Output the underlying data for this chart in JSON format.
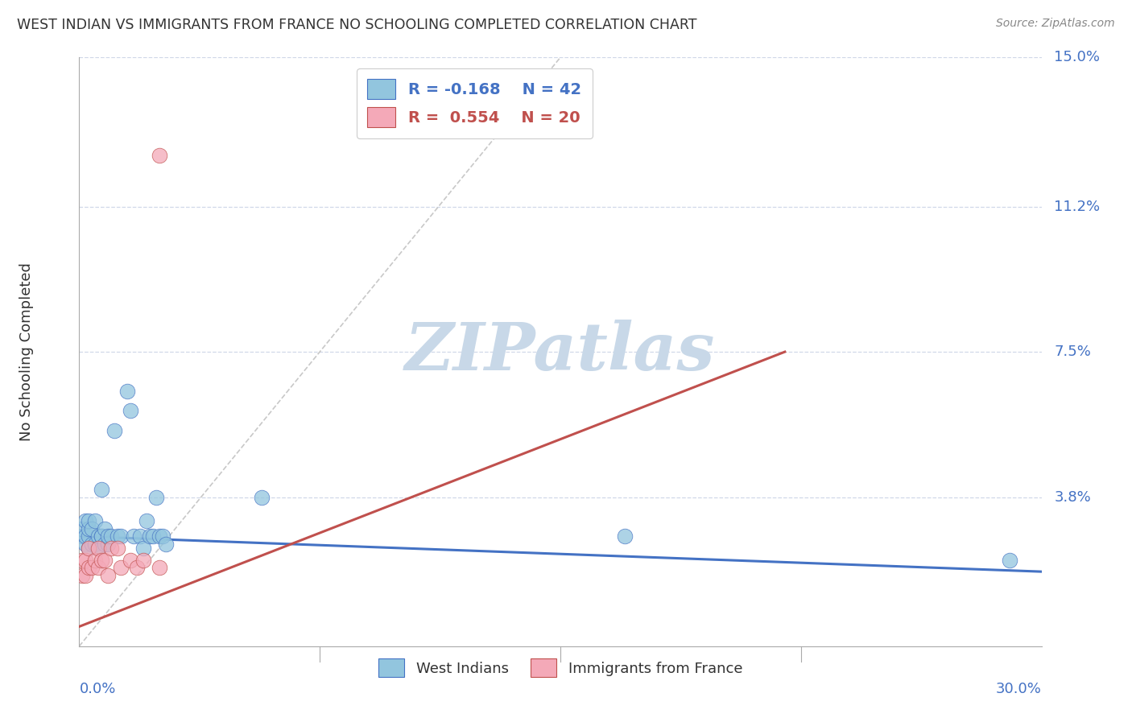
{
  "title": "WEST INDIAN VS IMMIGRANTS FROM FRANCE NO SCHOOLING COMPLETED CORRELATION CHART",
  "source": "Source: ZipAtlas.com",
  "ylabel": "No Schooling Completed",
  "xlim": [
    0.0,
    0.3
  ],
  "ylim": [
    0.0,
    0.15
  ],
  "xtick_labels": [
    "0.0%",
    "30.0%"
  ],
  "ytick_labels": [
    "15.0%",
    "11.2%",
    "7.5%",
    "3.8%"
  ],
  "ytick_vals": [
    0.15,
    0.112,
    0.075,
    0.038
  ],
  "color_blue": "#92c5de",
  "color_pink": "#f4a9b8",
  "color_line_blue": "#4472c4",
  "color_line_pink": "#c0504d",
  "color_diag": "#c8c8c8",
  "color_axis_label": "#4472c4",
  "background_color": "#ffffff",
  "grid_color": "#d0d8e8",
  "watermark_color": "#c8d8e8",
  "blue_scatter_x": [
    0.001,
    0.001,
    0.002,
    0.002,
    0.002,
    0.003,
    0.003,
    0.003,
    0.003,
    0.004,
    0.004,
    0.005,
    0.005,
    0.006,
    0.006,
    0.007,
    0.007,
    0.007,
    0.008,
    0.008,
    0.009,
    0.009,
    0.01,
    0.011,
    0.012,
    0.013,
    0.015,
    0.016,
    0.017,
    0.019,
    0.02,
    0.021,
    0.022,
    0.023,
    0.024,
    0.025,
    0.026,
    0.027,
    0.057,
    0.17,
    0.29
  ],
  "blue_scatter_y": [
    0.028,
    0.03,
    0.026,
    0.028,
    0.032,
    0.025,
    0.028,
    0.03,
    0.032,
    0.026,
    0.03,
    0.026,
    0.032,
    0.025,
    0.028,
    0.028,
    0.04,
    0.028,
    0.026,
    0.03,
    0.026,
    0.028,
    0.028,
    0.055,
    0.028,
    0.028,
    0.065,
    0.06,
    0.028,
    0.028,
    0.025,
    0.032,
    0.028,
    0.028,
    0.038,
    0.028,
    0.028,
    0.026,
    0.038,
    0.028,
    0.022
  ],
  "pink_scatter_x": [
    0.001,
    0.001,
    0.002,
    0.002,
    0.003,
    0.003,
    0.004,
    0.005,
    0.006,
    0.006,
    0.007,
    0.008,
    0.009,
    0.01,
    0.012,
    0.013,
    0.016,
    0.018,
    0.02,
    0.025,
    0.025
  ],
  "pink_scatter_y": [
    0.018,
    0.022,
    0.018,
    0.022,
    0.02,
    0.025,
    0.02,
    0.022,
    0.02,
    0.025,
    0.022,
    0.022,
    0.018,
    0.025,
    0.025,
    0.02,
    0.022,
    0.02,
    0.022,
    0.02,
    0.125
  ],
  "blue_line_x": [
    0.0,
    0.3
  ],
  "blue_line_y": [
    0.028,
    0.019
  ],
  "pink_line_x": [
    0.0,
    0.22
  ],
  "pink_line_y": [
    0.005,
    0.075
  ],
  "diag_line_x": [
    0.0,
    0.15
  ],
  "diag_line_y": [
    0.0,
    0.15
  ]
}
